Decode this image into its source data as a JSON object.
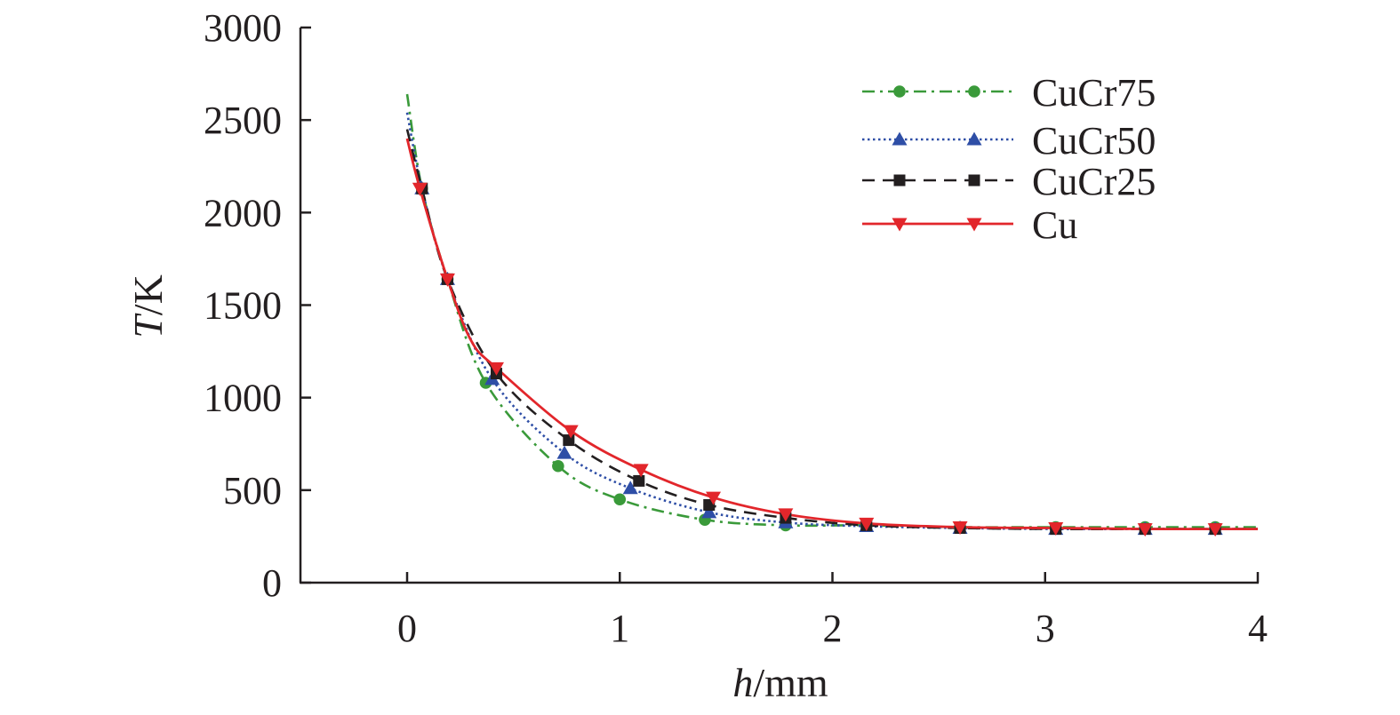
{
  "chart_data": {
    "type": "line",
    "title": "",
    "xlabel_italic": "h",
    "xlabel_unit": "/mm",
    "ylabel_italic": "T",
    "ylabel_unit": "/K",
    "xlim": [
      -0.5,
      4
    ],
    "ylim": [
      0,
      3000
    ],
    "x_ticks": [
      0,
      1,
      2,
      3,
      4
    ],
    "y_ticks": [
      0,
      500,
      1000,
      1500,
      2000,
      2500,
      3000
    ],
    "x_tick_labels": [
      "0",
      "1",
      "2",
      "3",
      "4"
    ],
    "y_tick_labels": [
      "0",
      "500",
      "1000",
      "1500",
      "2000",
      "2500",
      "3000"
    ],
    "grid": false,
    "legend_position": "top-right",
    "series": [
      {
        "name": "CuCr75",
        "color": "#3a9a3a",
        "line_style": "dash-dot",
        "marker": "circle",
        "x": [
          0.0,
          0.07,
          0.19,
          0.37,
          0.71,
          1.0,
          1.4,
          1.78,
          2.16,
          2.6,
          3.05,
          3.47,
          3.8,
          4.0
        ],
        "y": [
          2640,
          2130,
          1640,
          1080,
          630,
          450,
          340,
          310,
          310,
          300,
          300,
          300,
          300,
          300
        ],
        "marker_x": [
          0.07,
          0.19,
          0.37,
          0.71,
          1.0,
          1.4,
          1.78,
          2.16,
          2.6,
          3.05,
          3.47,
          3.8
        ],
        "marker_y": [
          2130,
          1640,
          1080,
          630,
          450,
          340,
          310,
          310,
          300,
          300,
          300,
          300
        ]
      },
      {
        "name": "CuCr50",
        "color": "#2e4ea6",
        "line_style": "dotted",
        "marker": "triangle-up",
        "x": [
          0.0,
          0.07,
          0.19,
          0.4,
          0.74,
          1.05,
          1.42,
          1.78,
          2.16,
          2.6,
          3.05,
          3.47,
          3.8,
          4.0
        ],
        "y": [
          2540,
          2130,
          1640,
          1100,
          700,
          510,
          380,
          325,
          305,
          295,
          290,
          290,
          290,
          290
        ],
        "marker_x": [
          0.07,
          0.19,
          0.4,
          0.74,
          1.05,
          1.42,
          1.78,
          2.16,
          2.6,
          3.05,
          3.47,
          3.8
        ],
        "marker_y": [
          2130,
          1640,
          1100,
          700,
          510,
          380,
          325,
          305,
          295,
          290,
          290,
          290
        ]
      },
      {
        "name": "CuCr25",
        "color": "#231f20",
        "line_style": "dashed",
        "marker": "square",
        "x": [
          0.0,
          0.07,
          0.19,
          0.42,
          0.76,
          1.09,
          1.42,
          1.78,
          2.16,
          2.6,
          3.05,
          3.47,
          3.8,
          4.0
        ],
        "y": [
          2450,
          2130,
          1640,
          1130,
          770,
          550,
          420,
          350,
          310,
          295,
          290,
          290,
          290,
          290
        ],
        "marker_x": [
          0.07,
          0.19,
          0.42,
          0.76,
          1.09,
          1.42,
          1.78,
          2.16,
          2.6,
          3.05,
          3.47,
          3.8
        ],
        "marker_y": [
          2130,
          1640,
          1130,
          770,
          550,
          420,
          350,
          310,
          295,
          290,
          290,
          290
        ]
      },
      {
        "name": "Cu",
        "color": "#e2262b",
        "line_style": "solid",
        "marker": "triangle-down",
        "x": [
          0.0,
          0.06,
          0.19,
          0.3,
          0.42,
          0.77,
          1.1,
          1.44,
          1.78,
          2.16,
          2.6,
          3.05,
          3.47,
          3.8,
          4.0
        ],
        "y": [
          2400,
          2130,
          1640,
          1310,
          1160,
          820,
          610,
          460,
          370,
          320,
          300,
          295,
          290,
          290,
          290
        ],
        "marker_x": [
          0.06,
          0.19,
          0.42,
          0.77,
          1.1,
          1.44,
          1.78,
          2.16,
          2.6,
          3.05,
          3.47,
          3.8
        ],
        "marker_y": [
          2130,
          1640,
          1160,
          820,
          610,
          460,
          370,
          320,
          300,
          295,
          290,
          290
        ]
      }
    ]
  }
}
